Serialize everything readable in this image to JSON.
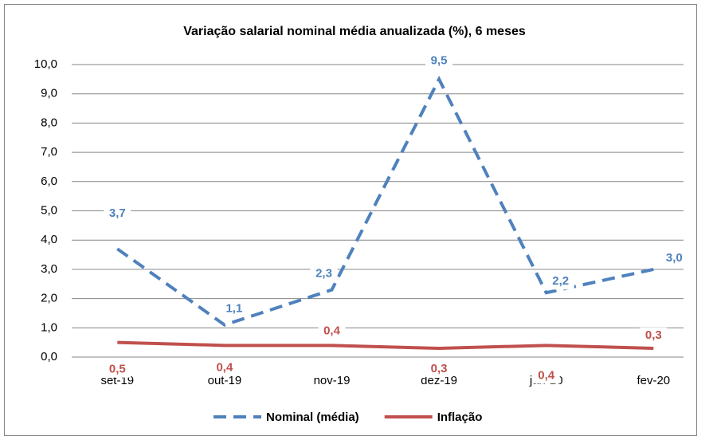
{
  "chart_data": {
    "type": "line",
    "title": "Variação salarial nominal média anualizada (%), 6 meses",
    "categories": [
      "set-19",
      "out-19",
      "nov-19",
      "dez-19",
      "jan-20",
      "fev-20"
    ],
    "series": [
      {
        "name": "Nominal (média)",
        "color": "#4f81bd",
        "dashed": true,
        "values": [
          3.7,
          1.1,
          2.3,
          9.5,
          2.2,
          3.0
        ],
        "value_labels": [
          "3,7",
          "1,1",
          "2,3",
          "9,5",
          "2,2",
          "3,0"
        ]
      },
      {
        "name": "Inflação",
        "color": "#c0504d",
        "dashed": false,
        "values": [
          0.5,
          0.4,
          0.4,
          0.3,
          0.4,
          0.3
        ],
        "value_labels": [
          "0,5",
          "0,4",
          "0,4",
          "0,3",
          "0,4",
          "0,3"
        ]
      }
    ],
    "ylim": [
      0,
      10
    ],
    "yticks": [
      {
        "value": 0,
        "label": "0,0"
      },
      {
        "value": 1,
        "label": "1,0"
      },
      {
        "value": 2,
        "label": "2,0"
      },
      {
        "value": 3,
        "label": "3,0"
      },
      {
        "value": 4,
        "label": "4,0"
      },
      {
        "value": 5,
        "label": "5,0"
      },
      {
        "value": 6,
        "label": "6,0"
      },
      {
        "value": 7,
        "label": "7,0"
      },
      {
        "value": 8,
        "label": "8,0"
      },
      {
        "value": 9,
        "label": "9,0"
      },
      {
        "value": 10,
        "label": "10,0"
      }
    ],
    "grid": true,
    "legend": "bottom"
  }
}
